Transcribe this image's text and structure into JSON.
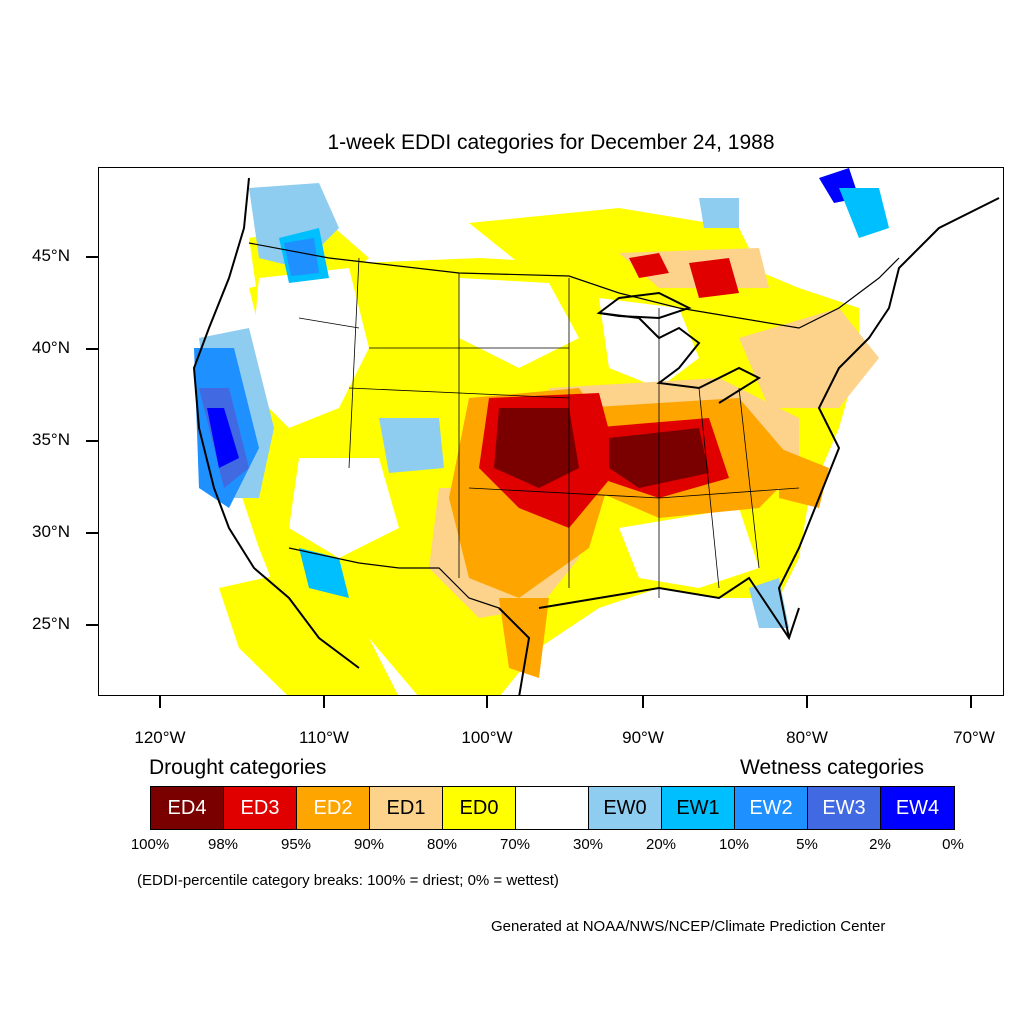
{
  "title": "1-week EDDI categories for December 24, 1988",
  "lat_labels": [
    "45°N",
    "40°N",
    "35°N",
    "30°N",
    "25°N"
  ],
  "lon_labels": [
    "120°W",
    "110°W",
    "100°W",
    "90°W",
    "80°W",
    "70°W"
  ],
  "legend": {
    "drought_heading": "Drought categories",
    "wetness_heading": "Wetness categories",
    "categories": [
      {
        "label": "ED4",
        "color": "#7a0000",
        "text_color": "#ffffff"
      },
      {
        "label": "ED3",
        "color": "#e00000",
        "text_color": "#ffffff"
      },
      {
        "label": "ED2",
        "color": "#ffa500",
        "text_color": "#ffffff"
      },
      {
        "label": "ED1",
        "color": "#fdd28a",
        "text_color": "#000000"
      },
      {
        "label": "ED0",
        "color": "#ffff00",
        "text_color": "#000000"
      },
      {
        "label": "",
        "color": "#ffffff",
        "text_color": "#000000"
      },
      {
        "label": "EW0",
        "color": "#8ecdf0",
        "text_color": "#000000"
      },
      {
        "label": "EW1",
        "color": "#00bfff",
        "text_color": "#000000"
      },
      {
        "label": "EW2",
        "color": "#1e90ff",
        "text_color": "#ffffff"
      },
      {
        "label": "EW3",
        "color": "#4169e1",
        "text_color": "#ffffff"
      },
      {
        "label": "EW4",
        "color": "#0000ff",
        "text_color": "#ffffff"
      }
    ],
    "breaks": [
      "100%",
      "98%",
      "95%",
      "90%",
      "80%",
      "70%",
      "30%",
      "20%",
      "10%",
      "5%",
      "2%",
      "0%"
    ]
  },
  "note": "(EDDI-percentile category breaks: 100% = driest; 0% = wettest)",
  "credit": "Generated at NOAA/NWS/NCEP/Climate Prediction Center"
}
